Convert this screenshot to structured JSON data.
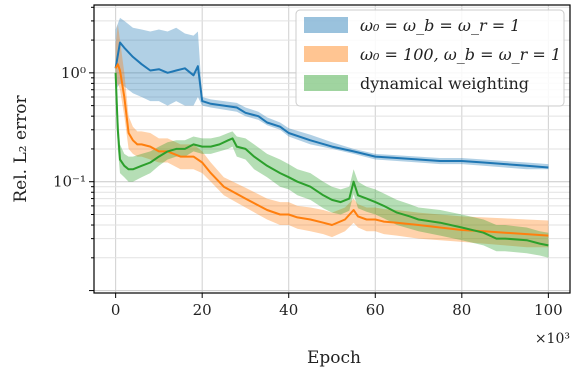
{
  "chart_data": {
    "type": "line",
    "xlabel": "Epoch",
    "ylabel": "Rel. L₂ error",
    "x_multiplier_label": "×10³",
    "xlim": [
      -5,
      105
    ],
    "ylim": [
      0.0095,
      4.2
    ],
    "yscale": "log",
    "grid": true,
    "legend_position": "top-right",
    "x_ticks": [
      {
        "value": 0,
        "label": "0"
      },
      {
        "value": 20,
        "label": "20"
      },
      {
        "value": 40,
        "label": "40"
      },
      {
        "value": 60,
        "label": "60"
      },
      {
        "value": 80,
        "label": "80"
      },
      {
        "value": 100,
        "label": "100"
      }
    ],
    "y_ticks": [
      {
        "value": 1,
        "label": "10⁰"
      },
      {
        "value": 0.1,
        "label": "10⁻¹"
      }
    ],
    "series": [
      {
        "name": "ω₀ = ω_b = ω_r = 1",
        "color": "#1f77b4",
        "x": [
          0,
          1,
          2,
          4,
          6,
          8,
          10,
          12,
          14,
          16,
          18,
          19,
          20,
          22,
          25,
          28,
          30,
          33,
          35,
          38,
          40,
          45,
          50,
          55,
          60,
          65,
          70,
          75,
          80,
          85,
          90,
          95,
          100
        ],
        "y": [
          1.1,
          1.9,
          1.7,
          1.4,
          1.2,
          1.05,
          1.08,
          1.0,
          1.05,
          1.1,
          0.95,
          1.15,
          0.55,
          0.52,
          0.5,
          0.48,
          0.43,
          0.4,
          0.35,
          0.32,
          0.28,
          0.24,
          0.21,
          0.19,
          0.17,
          0.165,
          0.16,
          0.155,
          0.155,
          0.15,
          0.145,
          0.14,
          0.135
        ],
        "band_low": [
          0.7,
          0.8,
          0.75,
          0.65,
          0.6,
          0.55,
          0.55,
          0.5,
          0.55,
          0.5,
          0.5,
          0.6,
          0.5,
          0.48,
          0.46,
          0.44,
          0.4,
          0.37,
          0.33,
          0.3,
          0.26,
          0.22,
          0.2,
          0.18,
          0.16,
          0.155,
          0.15,
          0.145,
          0.145,
          0.14,
          0.135,
          0.13,
          0.13
        ],
        "band_high": [
          2.5,
          3.2,
          3.0,
          2.6,
          2.5,
          2.4,
          2.5,
          2.4,
          2.6,
          2.3,
          2.2,
          2.4,
          0.6,
          0.57,
          0.55,
          0.53,
          0.48,
          0.44,
          0.39,
          0.35,
          0.31,
          0.27,
          0.23,
          0.2,
          0.18,
          0.175,
          0.17,
          0.165,
          0.165,
          0.16,
          0.155,
          0.15,
          0.145
        ]
      },
      {
        "name": "ω₀ = 100, ω_b = ω_r = 1",
        "color": "#ff7f0e",
        "x": [
          0,
          0.5,
          1,
          2,
          3,
          4,
          5,
          6,
          8,
          10,
          12,
          15,
          18,
          20,
          22,
          25,
          30,
          35,
          38,
          40,
          42,
          45,
          48,
          50,
          53,
          55,
          56,
          58,
          60,
          62,
          65,
          70,
          75,
          80,
          85,
          90,
          95,
          100
        ],
        "y": [
          1.1,
          1.2,
          1.05,
          0.6,
          0.28,
          0.24,
          0.22,
          0.22,
          0.21,
          0.19,
          0.19,
          0.17,
          0.17,
          0.15,
          0.12,
          0.09,
          0.07,
          0.055,
          0.05,
          0.05,
          0.047,
          0.045,
          0.042,
          0.04,
          0.045,
          0.055,
          0.048,
          0.045,
          0.045,
          0.043,
          0.042,
          0.04,
          0.038,
          0.036,
          0.035,
          0.034,
          0.033,
          0.032
        ],
        "band_low": [
          0.7,
          0.8,
          0.7,
          0.4,
          0.2,
          0.18,
          0.17,
          0.17,
          0.16,
          0.15,
          0.15,
          0.13,
          0.13,
          0.12,
          0.1,
          0.075,
          0.058,
          0.045,
          0.04,
          0.04,
          0.037,
          0.035,
          0.033,
          0.031,
          0.035,
          0.042,
          0.038,
          0.035,
          0.035,
          0.033,
          0.032,
          0.03,
          0.029,
          0.028,
          0.027,
          0.026,
          0.025,
          0.025
        ],
        "band_high": [
          1.8,
          2.8,
          2.0,
          1.0,
          0.4,
          0.32,
          0.29,
          0.29,
          0.28,
          0.25,
          0.25,
          0.22,
          0.22,
          0.19,
          0.15,
          0.11,
          0.088,
          0.07,
          0.065,
          0.065,
          0.06,
          0.058,
          0.055,
          0.052,
          0.058,
          0.07,
          0.062,
          0.058,
          0.058,
          0.056,
          0.055,
          0.052,
          0.05,
          0.048,
          0.047,
          0.046,
          0.045,
          0.044
        ]
      },
      {
        "name": "dynamical weighting",
        "color": "#2ca02c",
        "x": [
          0,
          0.5,
          1,
          2,
          3,
          4,
          6,
          8,
          10,
          12,
          14,
          16,
          18,
          20,
          22,
          24,
          26,
          27,
          28,
          30,
          32,
          35,
          38,
          40,
          42,
          45,
          48,
          50,
          52,
          54,
          55,
          56,
          58,
          60,
          62,
          65,
          68,
          70,
          75,
          80,
          85,
          88,
          90,
          95,
          98,
          100
        ],
        "y": [
          1.0,
          0.3,
          0.16,
          0.14,
          0.13,
          0.13,
          0.14,
          0.15,
          0.17,
          0.19,
          0.2,
          0.2,
          0.22,
          0.21,
          0.21,
          0.22,
          0.24,
          0.25,
          0.21,
          0.2,
          0.17,
          0.14,
          0.12,
          0.11,
          0.1,
          0.09,
          0.075,
          0.068,
          0.065,
          0.07,
          0.1,
          0.075,
          0.07,
          0.065,
          0.06,
          0.052,
          0.048,
          0.045,
          0.042,
          0.038,
          0.034,
          0.03,
          0.03,
          0.029,
          0.027,
          0.026
        ],
        "band_low": [
          0.6,
          0.2,
          0.12,
          0.11,
          0.1,
          0.1,
          0.11,
          0.12,
          0.14,
          0.16,
          0.17,
          0.17,
          0.19,
          0.18,
          0.18,
          0.19,
          0.2,
          0.21,
          0.17,
          0.16,
          0.13,
          0.11,
          0.09,
          0.085,
          0.075,
          0.068,
          0.057,
          0.052,
          0.05,
          0.054,
          0.077,
          0.057,
          0.053,
          0.05,
          0.046,
          0.04,
          0.037,
          0.035,
          0.032,
          0.029,
          0.026,
          0.023,
          0.023,
          0.022,
          0.021,
          0.02
        ],
        "band_high": [
          1.4,
          0.45,
          0.22,
          0.18,
          0.17,
          0.17,
          0.18,
          0.19,
          0.21,
          0.23,
          0.24,
          0.24,
          0.26,
          0.25,
          0.25,
          0.26,
          0.28,
          0.29,
          0.26,
          0.25,
          0.22,
          0.18,
          0.16,
          0.145,
          0.13,
          0.12,
          0.1,
          0.09,
          0.085,
          0.09,
          0.13,
          0.1,
          0.09,
          0.085,
          0.078,
          0.068,
          0.062,
          0.058,
          0.055,
          0.05,
          0.045,
          0.04,
          0.04,
          0.038,
          0.035,
          0.034
        ]
      }
    ]
  }
}
